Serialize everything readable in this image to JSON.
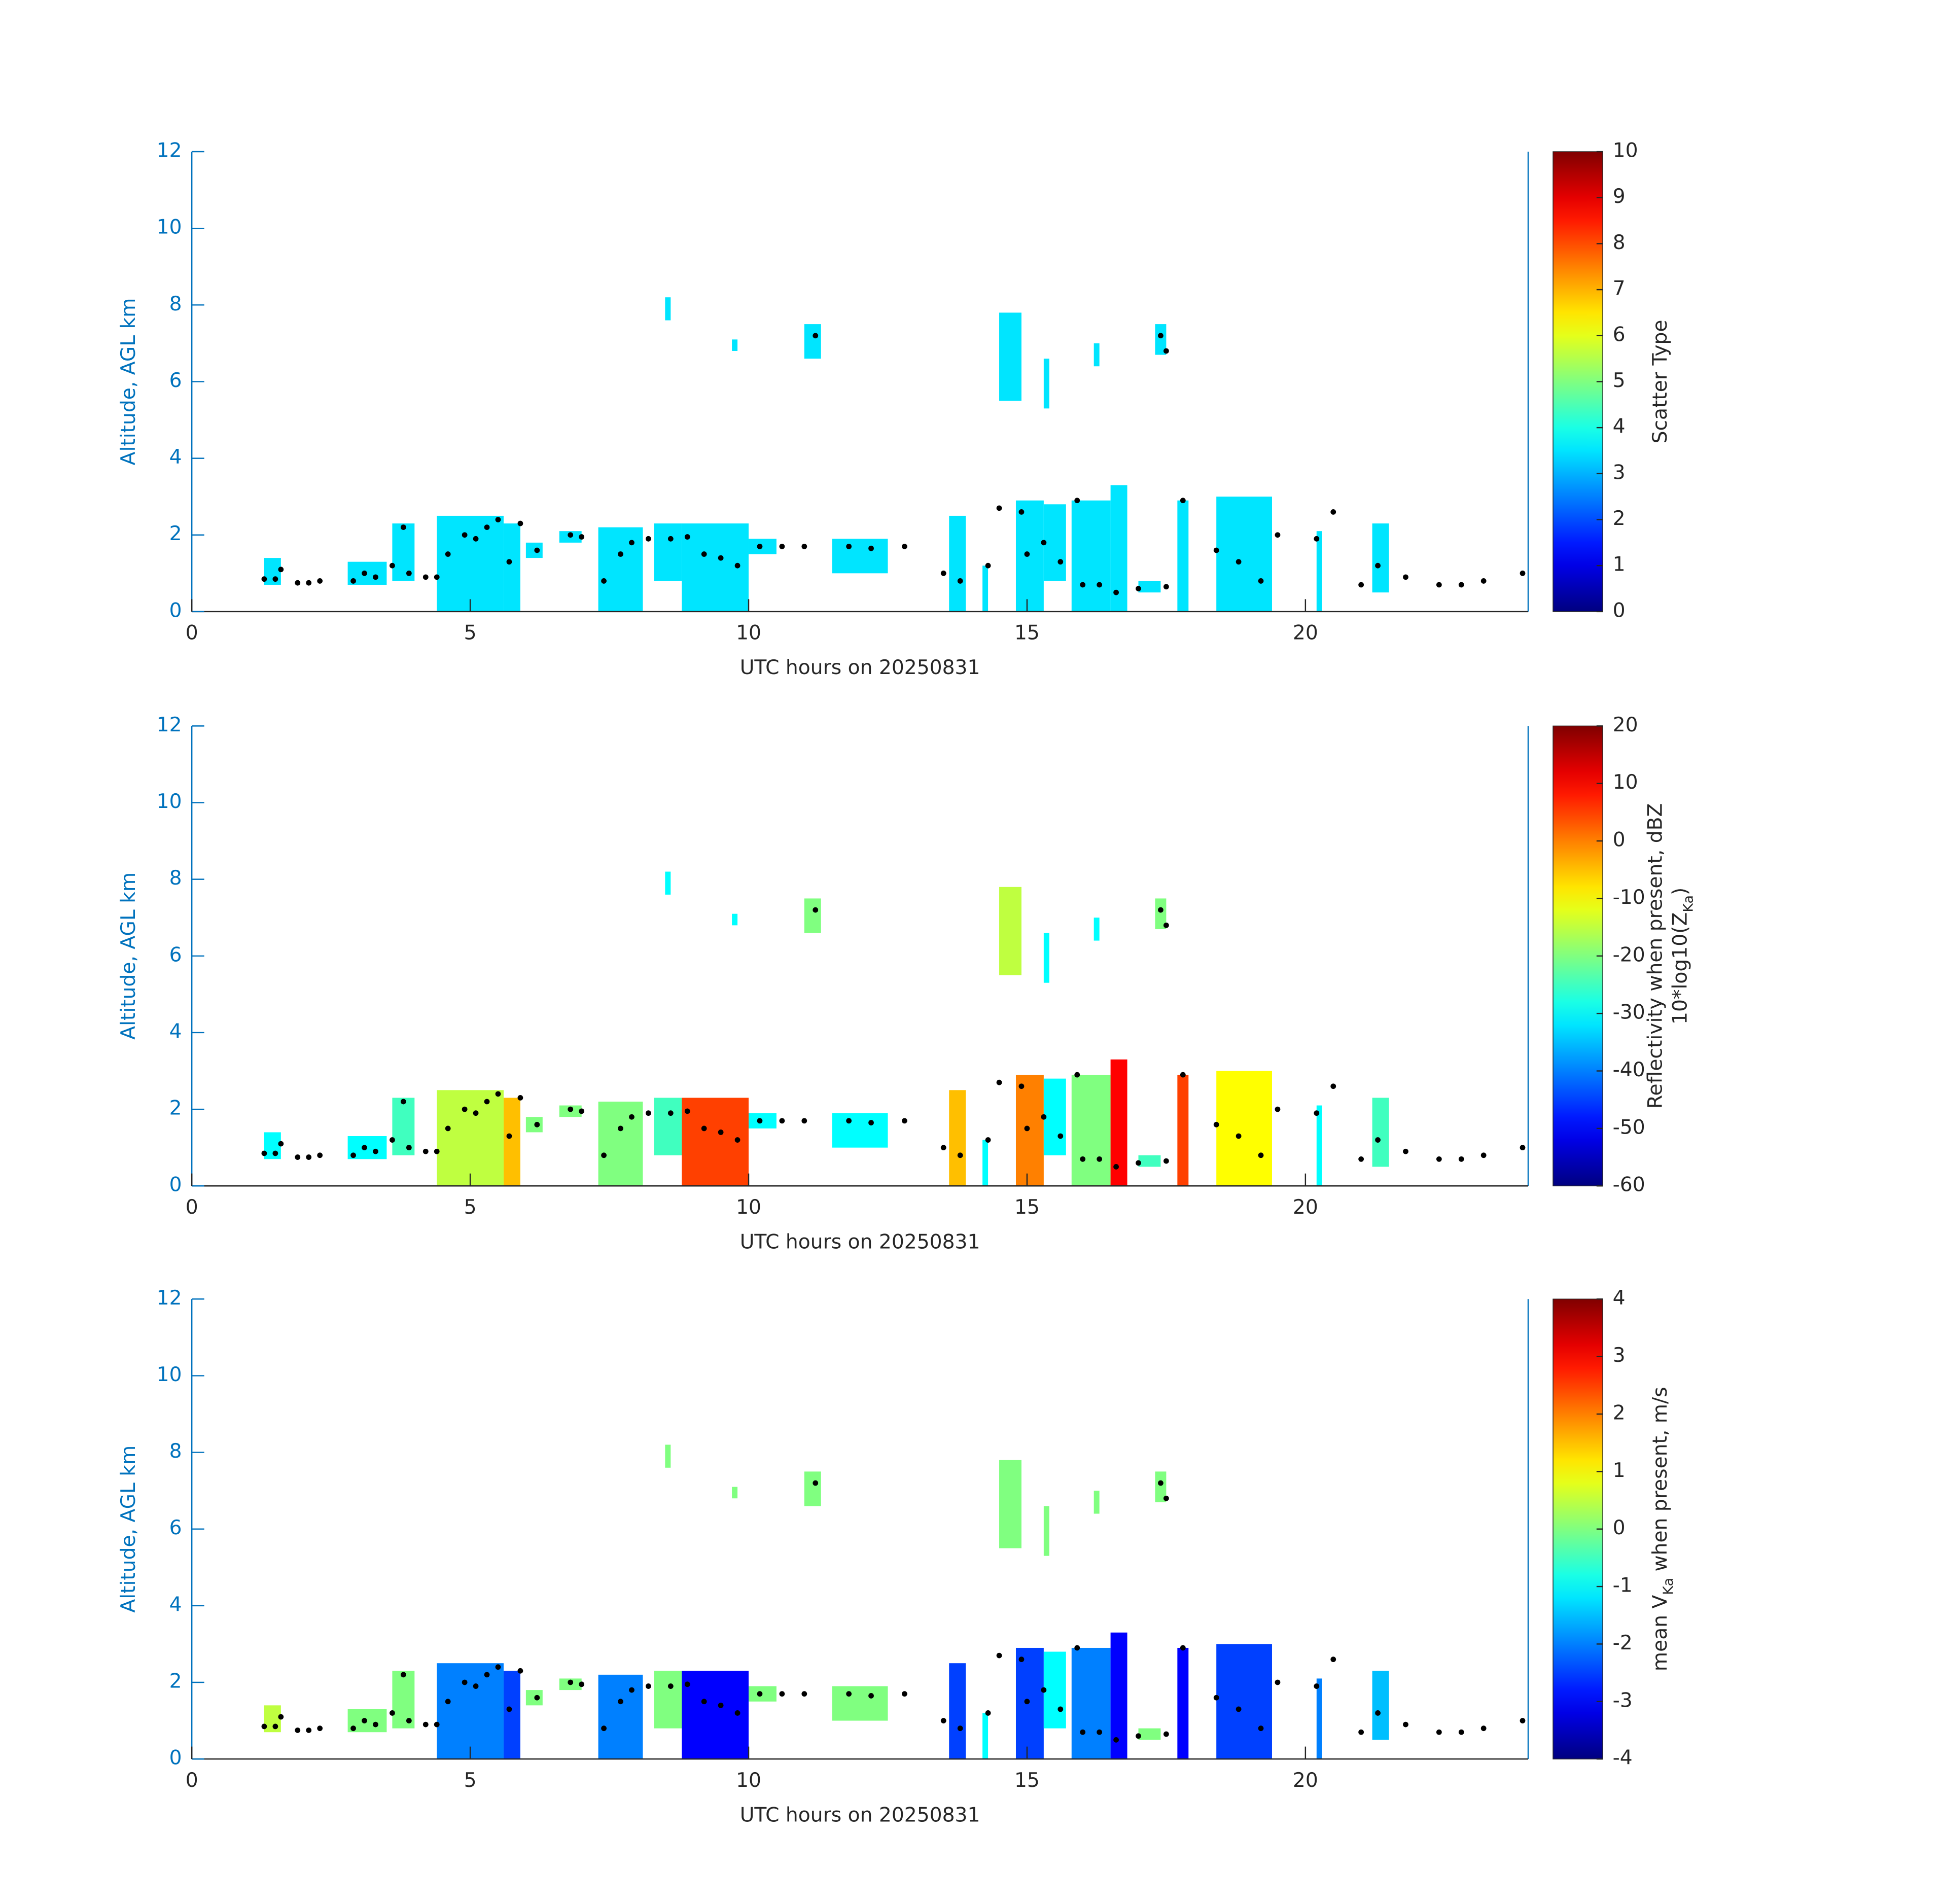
{
  "chart_data": [
    {
      "type": "heatmap",
      "xlabel": "UTC hours on 20250831",
      "ylabel": "Altitude, AGL km",
      "colormap": "jet",
      "colorbar_label": [
        [
          {
            "text": "Scatter Type"
          }
        ]
      ],
      "xlim": [
        0,
        24
      ],
      "xticks": [
        0,
        5,
        10,
        15,
        20
      ],
      "ylim": [
        0,
        12
      ],
      "yticks": [
        0,
        2,
        4,
        6,
        8,
        10,
        12
      ],
      "clim": [
        0,
        10
      ],
      "cticks": [
        0,
        1,
        2,
        3,
        4,
        5,
        6,
        7,
        8,
        9,
        10
      ],
      "patches": {
        "x0": [
          1.3,
          2.8,
          3.6,
          4.4,
          5.6,
          6.0,
          6.6,
          7.3,
          8.3,
          8.8,
          10.0,
          11.5,
          13.6,
          14.2,
          14.8,
          15.3,
          15.8,
          16.5,
          17.0,
          17.7,
          18.4,
          20.2,
          21.2,
          14.5,
          11.0,
          17.3,
          9.7,
          15.3,
          8.5,
          16.2
        ],
        "x1": [
          1.6,
          3.5,
          4.0,
          5.6,
          5.9,
          6.3,
          7.0,
          8.1,
          8.8,
          10.0,
          10.5,
          12.5,
          13.9,
          14.3,
          15.3,
          15.7,
          16.5,
          16.8,
          17.4,
          17.9,
          19.4,
          20.3,
          21.5,
          14.9,
          11.3,
          17.5,
          9.8,
          15.4,
          8.6,
          16.3
        ],
        "y0": [
          0.7,
          0.7,
          0.8,
          0,
          0,
          1.4,
          1.8,
          0,
          0.8,
          0,
          1.5,
          1.0,
          0,
          0,
          0,
          0.8,
          0,
          0,
          0.5,
          0,
          0,
          0,
          0.5,
          5.5,
          6.6,
          6.7,
          6.8,
          5.3,
          7.6,
          6.4
        ],
        "y1": [
          1.4,
          1.3,
          2.3,
          2.5,
          2.3,
          1.8,
          2.1,
          2.2,
          2.3,
          2.3,
          1.9,
          1.9,
          2.5,
          1.2,
          2.9,
          2.8,
          2.9,
          3.3,
          0.8,
          2.9,
          3.0,
          2.1,
          2.3,
          7.8,
          7.5,
          7.5,
          7.1,
          6.6,
          8.2,
          7.0
        ],
        "values": [
          3.5,
          3.5,
          3.5,
          3.5,
          3.5,
          3.5,
          3.5,
          3.5,
          3.5,
          3.5,
          3.5,
          3.5,
          3.5,
          3.5,
          3.5,
          3.5,
          3.5,
          3.5,
          3.5,
          3.5,
          3.5,
          3.5,
          3.5,
          3.5,
          3.5,
          3.5,
          3.5,
          3.5,
          3.5,
          3.5
        ]
      },
      "points": {
        "color": "#000000",
        "x": [
          1.3,
          1.5,
          1.6,
          1.9,
          2.1,
          2.3,
          2.9,
          3.1,
          3.3,
          3.6,
          3.8,
          3.9,
          4.2,
          4.4,
          4.6,
          4.9,
          5.1,
          5.3,
          5.5,
          5.7,
          5.9,
          6.2,
          6.8,
          7.0,
          7.4,
          7.7,
          7.9,
          8.2,
          8.6,
          8.9,
          9.2,
          9.5,
          9.8,
          10.2,
          10.6,
          11.0,
          11.2,
          11.8,
          12.2,
          12.8,
          13.5,
          13.8,
          14.3,
          14.5,
          14.9,
          15.0,
          15.3,
          15.6,
          16.0,
          16.3,
          16.6,
          17.0,
          17.4,
          17.5,
          17.8,
          18.4,
          18.8,
          19.2,
          19.5,
          20.2,
          20.5,
          21.0,
          21.3,
          21.8,
          22.4,
          22.8,
          23.2,
          23.9,
          15.9,
          17.5
        ],
        "y": [
          0.85,
          0.85,
          1.1,
          0.75,
          0.75,
          0.8,
          0.8,
          1.0,
          0.9,
          1.2,
          2.2,
          1.0,
          0.9,
          0.9,
          1.5,
          2.0,
          1.9,
          2.2,
          2.4,
          1.3,
          2.3,
          1.6,
          2.0,
          1.95,
          0.8,
          1.5,
          1.8,
          1.9,
          1.9,
          1.95,
          1.5,
          1.4,
          1.2,
          1.7,
          1.7,
          1.7,
          7.2,
          1.7,
          1.65,
          1.7,
          1.0,
          0.8,
          1.2,
          2.7,
          2.6,
          1.5,
          1.8,
          1.3,
          0.7,
          0.7,
          0.5,
          0.6,
          7.2,
          0.65,
          2.9,
          1.6,
          1.3,
          0.8,
          2.0,
          1.9,
          2.6,
          0.7,
          1.2,
          0.9,
          0.7,
          0.7,
          0.8,
          1.0,
          2.9,
          6.8
        ]
      }
    },
    {
      "type": "heatmap",
      "xlabel": "UTC hours on 20250831",
      "ylabel": "Altitude, AGL km",
      "colormap": "jet",
      "colorbar_label": [
        [
          {
            "text": "Reflectivity when present, dBZ"
          }
        ],
        [
          {
            "text": "10*log10(Z"
          },
          {
            "text": "Ka",
            "sub": true
          },
          {
            "text": ")"
          }
        ]
      ],
      "xlim": [
        0,
        24
      ],
      "xticks": [
        0,
        5,
        10,
        15,
        20
      ],
      "ylim": [
        0,
        12
      ],
      "yticks": [
        0,
        2,
        4,
        6,
        8,
        10,
        12
      ],
      "clim": [
        -60,
        20
      ],
      "cticks": [
        -60,
        -50,
        -40,
        -30,
        -20,
        -10,
        0,
        10,
        20
      ],
      "patches": {
        "x0": [
          1.3,
          2.8,
          3.6,
          4.4,
          5.6,
          6.0,
          6.6,
          7.3,
          8.3,
          8.8,
          10.0,
          11.5,
          13.6,
          14.2,
          14.8,
          15.3,
          15.8,
          16.5,
          17.0,
          17.7,
          18.4,
          20.2,
          21.2,
          14.5,
          11.0,
          17.3,
          9.7,
          15.3,
          8.5,
          16.2
        ],
        "x1": [
          1.6,
          3.5,
          4.0,
          5.6,
          5.9,
          6.3,
          7.0,
          8.1,
          8.8,
          10.0,
          10.5,
          12.5,
          13.9,
          14.3,
          15.3,
          15.7,
          16.5,
          16.8,
          17.4,
          17.9,
          19.4,
          20.3,
          21.5,
          14.9,
          11.3,
          17.5,
          9.8,
          15.4,
          8.6,
          16.3
        ],
        "y0": [
          0.7,
          0.7,
          0.8,
          0,
          0,
          1.4,
          1.8,
          0,
          0.8,
          0,
          1.5,
          1.0,
          0,
          0,
          0,
          0.8,
          0,
          0,
          0.5,
          0,
          0,
          0,
          0.5,
          5.5,
          6.6,
          6.7,
          6.8,
          5.3,
          7.6,
          6.4
        ],
        "y1": [
          1.4,
          1.3,
          2.3,
          2.5,
          2.3,
          1.8,
          2.1,
          2.2,
          2.3,
          2.3,
          1.9,
          1.9,
          2.5,
          1.2,
          2.9,
          2.8,
          2.9,
          3.3,
          0.8,
          2.9,
          3.0,
          2.1,
          2.3,
          7.8,
          7.5,
          7.5,
          7.1,
          6.6,
          8.2,
          7.0
        ],
        "values": [
          -30,
          -30,
          -25,
          -15,
          -5,
          -20,
          -20,
          -20,
          -25,
          5,
          -30,
          -30,
          -5,
          -30,
          0,
          -30,
          -20,
          10,
          -25,
          5,
          -10,
          -30,
          -25,
          -15,
          -20,
          -20,
          -30,
          -30,
          -30,
          -30
        ]
      },
      "points": {
        "color": "#000000",
        "x": [
          1.3,
          1.5,
          1.6,
          1.9,
          2.1,
          2.3,
          2.9,
          3.1,
          3.3,
          3.6,
          3.8,
          3.9,
          4.2,
          4.4,
          4.6,
          4.9,
          5.1,
          5.3,
          5.5,
          5.7,
          5.9,
          6.2,
          6.8,
          7.0,
          7.4,
          7.7,
          7.9,
          8.2,
          8.6,
          8.9,
          9.2,
          9.5,
          9.8,
          10.2,
          10.6,
          11.0,
          11.2,
          11.8,
          12.2,
          12.8,
          13.5,
          13.8,
          14.3,
          14.5,
          14.9,
          15.0,
          15.3,
          15.6,
          16.0,
          16.3,
          16.6,
          17.0,
          17.4,
          17.5,
          17.8,
          18.4,
          18.8,
          19.2,
          19.5,
          20.2,
          20.5,
          21.0,
          21.3,
          21.8,
          22.4,
          22.8,
          23.2,
          23.9,
          15.9,
          17.5
        ],
        "y": [
          0.85,
          0.85,
          1.1,
          0.75,
          0.75,
          0.8,
          0.8,
          1.0,
          0.9,
          1.2,
          2.2,
          1.0,
          0.9,
          0.9,
          1.5,
          2.0,
          1.9,
          2.2,
          2.4,
          1.3,
          2.3,
          1.6,
          2.0,
          1.95,
          0.8,
          1.5,
          1.8,
          1.9,
          1.9,
          1.95,
          1.5,
          1.4,
          1.2,
          1.7,
          1.7,
          1.7,
          7.2,
          1.7,
          1.65,
          1.7,
          1.0,
          0.8,
          1.2,
          2.7,
          2.6,
          1.5,
          1.8,
          1.3,
          0.7,
          0.7,
          0.5,
          0.6,
          7.2,
          0.65,
          2.9,
          1.6,
          1.3,
          0.8,
          2.0,
          1.9,
          2.6,
          0.7,
          1.2,
          0.9,
          0.7,
          0.7,
          0.8,
          1.0,
          2.9,
          6.8
        ]
      }
    },
    {
      "type": "heatmap",
      "xlabel": "UTC hours on 20250831",
      "ylabel": "Altitude, AGL km",
      "colormap": "jet",
      "colorbar_label": [
        [
          {
            "text": "mean V"
          },
          {
            "text": "Ka",
            "sub": true
          },
          {
            "text": " when present, m/s"
          }
        ]
      ],
      "xlim": [
        0,
        24
      ],
      "xticks": [
        0,
        5,
        10,
        15,
        20
      ],
      "ylim": [
        0,
        12
      ],
      "yticks": [
        0,
        2,
        4,
        6,
        8,
        10,
        12
      ],
      "clim": [
        -4,
        4
      ],
      "cticks": [
        -4,
        -3,
        -2,
        -1,
        0,
        1,
        2,
        3,
        4
      ],
      "patches": {
        "x0": [
          1.3,
          2.8,
          3.6,
          4.4,
          5.6,
          6.0,
          6.6,
          7.3,
          8.3,
          8.8,
          10.0,
          11.5,
          13.6,
          14.2,
          14.8,
          15.3,
          15.8,
          16.5,
          17.0,
          17.7,
          18.4,
          20.2,
          21.2,
          14.5,
          11.0,
          17.3,
          9.7,
          15.3,
          8.5,
          16.2
        ],
        "x1": [
          1.6,
          3.5,
          4.0,
          5.6,
          5.9,
          6.3,
          7.0,
          8.1,
          8.8,
          10.0,
          10.5,
          12.5,
          13.9,
          14.3,
          15.3,
          15.7,
          16.5,
          16.8,
          17.4,
          17.9,
          19.4,
          20.3,
          21.5,
          14.9,
          11.3,
          17.5,
          9.8,
          15.4,
          8.6,
          16.3
        ],
        "y0": [
          0.7,
          0.7,
          0.8,
          0,
          0,
          1.4,
          1.8,
          0,
          0.8,
          0,
          1.5,
          1.0,
          0,
          0,
          0,
          0.8,
          0,
          0,
          0.5,
          0,
          0,
          0,
          0.5,
          5.5,
          6.6,
          6.7,
          6.8,
          5.3,
          7.6,
          6.4
        ],
        "y1": [
          1.4,
          1.3,
          2.3,
          2.5,
          2.3,
          1.8,
          2.1,
          2.2,
          2.3,
          2.3,
          1.9,
          1.9,
          2.5,
          1.2,
          2.9,
          2.8,
          2.9,
          3.3,
          0.8,
          2.9,
          3.0,
          2.1,
          2.3,
          7.8,
          7.5,
          7.5,
          7.1,
          6.6,
          8.2,
          7.0
        ],
        "values": [
          0.5,
          0,
          0,
          -2,
          -2.5,
          0,
          0,
          -2,
          0,
          -3,
          0,
          0,
          -2.5,
          -1,
          -2.5,
          -1,
          -2,
          -3,
          0,
          -3,
          -2.5,
          -2,
          -1.5,
          0,
          0,
          0,
          0,
          0,
          0,
          0
        ]
      },
      "points": {
        "color": "#000000",
        "x": [
          1.3,
          1.5,
          1.6,
          1.9,
          2.1,
          2.3,
          2.9,
          3.1,
          3.3,
          3.6,
          3.8,
          3.9,
          4.2,
          4.4,
          4.6,
          4.9,
          5.1,
          5.3,
          5.5,
          5.7,
          5.9,
          6.2,
          6.8,
          7.0,
          7.4,
          7.7,
          7.9,
          8.2,
          8.6,
          8.9,
          9.2,
          9.5,
          9.8,
          10.2,
          10.6,
          11.0,
          11.2,
          11.8,
          12.2,
          12.8,
          13.5,
          13.8,
          14.3,
          14.5,
          14.9,
          15.0,
          15.3,
          15.6,
          16.0,
          16.3,
          16.6,
          17.0,
          17.4,
          17.5,
          17.8,
          18.4,
          18.8,
          19.2,
          19.5,
          20.2,
          20.5,
          21.0,
          21.3,
          21.8,
          22.4,
          22.8,
          23.2,
          23.9,
          15.9,
          17.5
        ],
        "y": [
          0.85,
          0.85,
          1.1,
          0.75,
          0.75,
          0.8,
          0.8,
          1.0,
          0.9,
          1.2,
          2.2,
          1.0,
          0.9,
          0.9,
          1.5,
          2.0,
          1.9,
          2.2,
          2.4,
          1.3,
          2.3,
          1.6,
          2.0,
          1.95,
          0.8,
          1.5,
          1.8,
          1.9,
          1.9,
          1.95,
          1.5,
          1.4,
          1.2,
          1.7,
          1.7,
          1.7,
          7.2,
          1.7,
          1.65,
          1.7,
          1.0,
          0.8,
          1.2,
          2.7,
          2.6,
          1.5,
          1.8,
          1.3,
          0.7,
          0.7,
          0.5,
          0.6,
          7.2,
          0.65,
          2.9,
          1.6,
          1.3,
          0.8,
          2.0,
          1.9,
          2.6,
          0.7,
          1.2,
          0.9,
          0.7,
          0.7,
          0.8,
          1.0,
          2.9,
          6.8
        ]
      }
    }
  ]
}
